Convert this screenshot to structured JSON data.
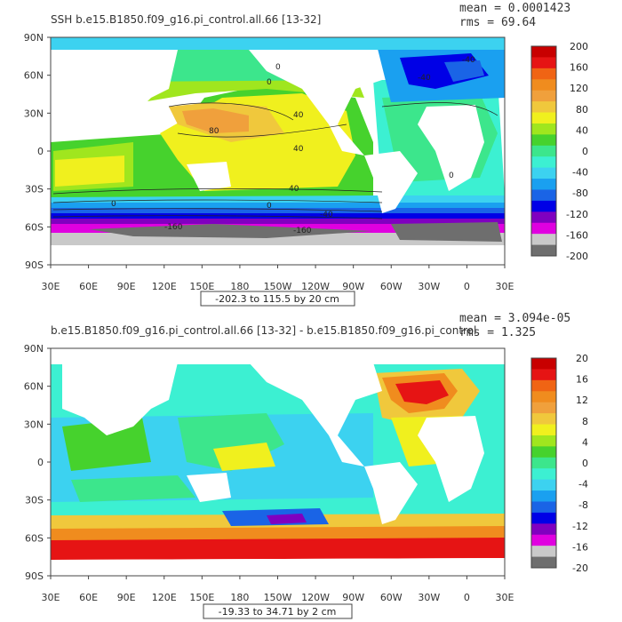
{
  "panels": [
    {
      "title": "SSH  b.e15.B1850.f09_g16.pi_control.all.66  [13-32]",
      "mean": "mean = 0.0001423",
      "rms": "rms = 69.64",
      "range_label": "-202.3 to 115.5 by 20 cm",
      "colorbar_ticks": [
        "200",
        "160",
        "120",
        "80",
        "40",
        "0",
        "-40",
        "-80",
        "-120",
        "-160",
        "-200"
      ],
      "contour_labels": [
        "80",
        "40",
        "40",
        "0",
        "0",
        "40",
        "0",
        "0",
        "-40",
        "-160",
        "-160",
        "0",
        "-40",
        "-40"
      ]
    },
    {
      "title": "b.e15.B1850.f09_g16.pi_control.all.66  [13-32]  -  b.e15.B1850.f09_g16.pi_control",
      "mean": "mean = 3.094e-05",
      "rms": "rms = 1.325",
      "range_label": "-19.33 to 34.71 by 2 cm",
      "colorbar_ticks": [
        "20",
        "16",
        "12",
        "8",
        "4",
        "0",
        "-4",
        "-8",
        "-12",
        "-16",
        "-20"
      ]
    }
  ],
  "xticks": [
    "30E",
    "60E",
    "90E",
    "120E",
    "150E",
    "180",
    "150W",
    "120W",
    "90W",
    "60W",
    "30W",
    "0",
    "30E"
  ],
  "yticks": [
    "90N",
    "60N",
    "30N",
    "0",
    "30S",
    "60S",
    "90S"
  ],
  "colors": {
    "palette": [
      "#6e6e6e",
      "#c9c9c9",
      "#e000e0",
      "#8000c0",
      "#0000e6",
      "#1a64e6",
      "#1aa0f0",
      "#3cd2f0",
      "#3cf0d2",
      "#3ce68c",
      "#46d22d",
      "#a0e61e",
      "#f0f01e",
      "#f0c83c",
      "#f0a03c",
      "#f08c1e",
      "#f06414",
      "#e61414",
      "#c80000"
    ],
    "land": "#ffffff",
    "ice": "#6e6e6e"
  },
  "chart_data": [
    {
      "type": "heatmap",
      "title": "SSH  b.e15.B1850.f09_g16.pi_control.all.66  [13-32]",
      "xlabel": "",
      "ylabel": "",
      "x_ticks": [
        "30E",
        "60E",
        "90E",
        "120E",
        "150E",
        "180",
        "150W",
        "120W",
        "90W",
        "60W",
        "30W",
        "0",
        "30E"
      ],
      "y_ticks": [
        "90N",
        "60N",
        "30N",
        "0",
        "30S",
        "60S",
        "90S"
      ],
      "colorbar": {
        "min": -200,
        "max": 200,
        "step": 20,
        "ticks": [
          200,
          160,
          120,
          80,
          40,
          0,
          -40,
          -80,
          -120,
          -160,
          -200
        ]
      },
      "data_range": [
        -202.3,
        115.5
      ],
      "units": "cm",
      "mean": 0.0001423,
      "rms": 69.64
    },
    {
      "type": "heatmap",
      "title": "b.e15.B1850.f09_g16.pi_control.all.66  [13-32]  -  b.e15.B1850.f09_g16.pi_control",
      "xlabel": "",
      "ylabel": "",
      "x_ticks": [
        "30E",
        "60E",
        "90E",
        "120E",
        "150E",
        "180",
        "150W",
        "120W",
        "90W",
        "60W",
        "30W",
        "0",
        "30E"
      ],
      "y_ticks": [
        "90N",
        "60N",
        "30N",
        "0",
        "30S",
        "60S",
        "90S"
      ],
      "colorbar": {
        "min": -20,
        "max": 20,
        "step": 2,
        "ticks": [
          20,
          16,
          12,
          8,
          4,
          0,
          -4,
          -8,
          -12,
          -16,
          -20
        ]
      },
      "data_range": [
        -19.33,
        34.71
      ],
      "units": "cm",
      "mean": 3.094e-05,
      "rms": 1.325
    }
  ]
}
